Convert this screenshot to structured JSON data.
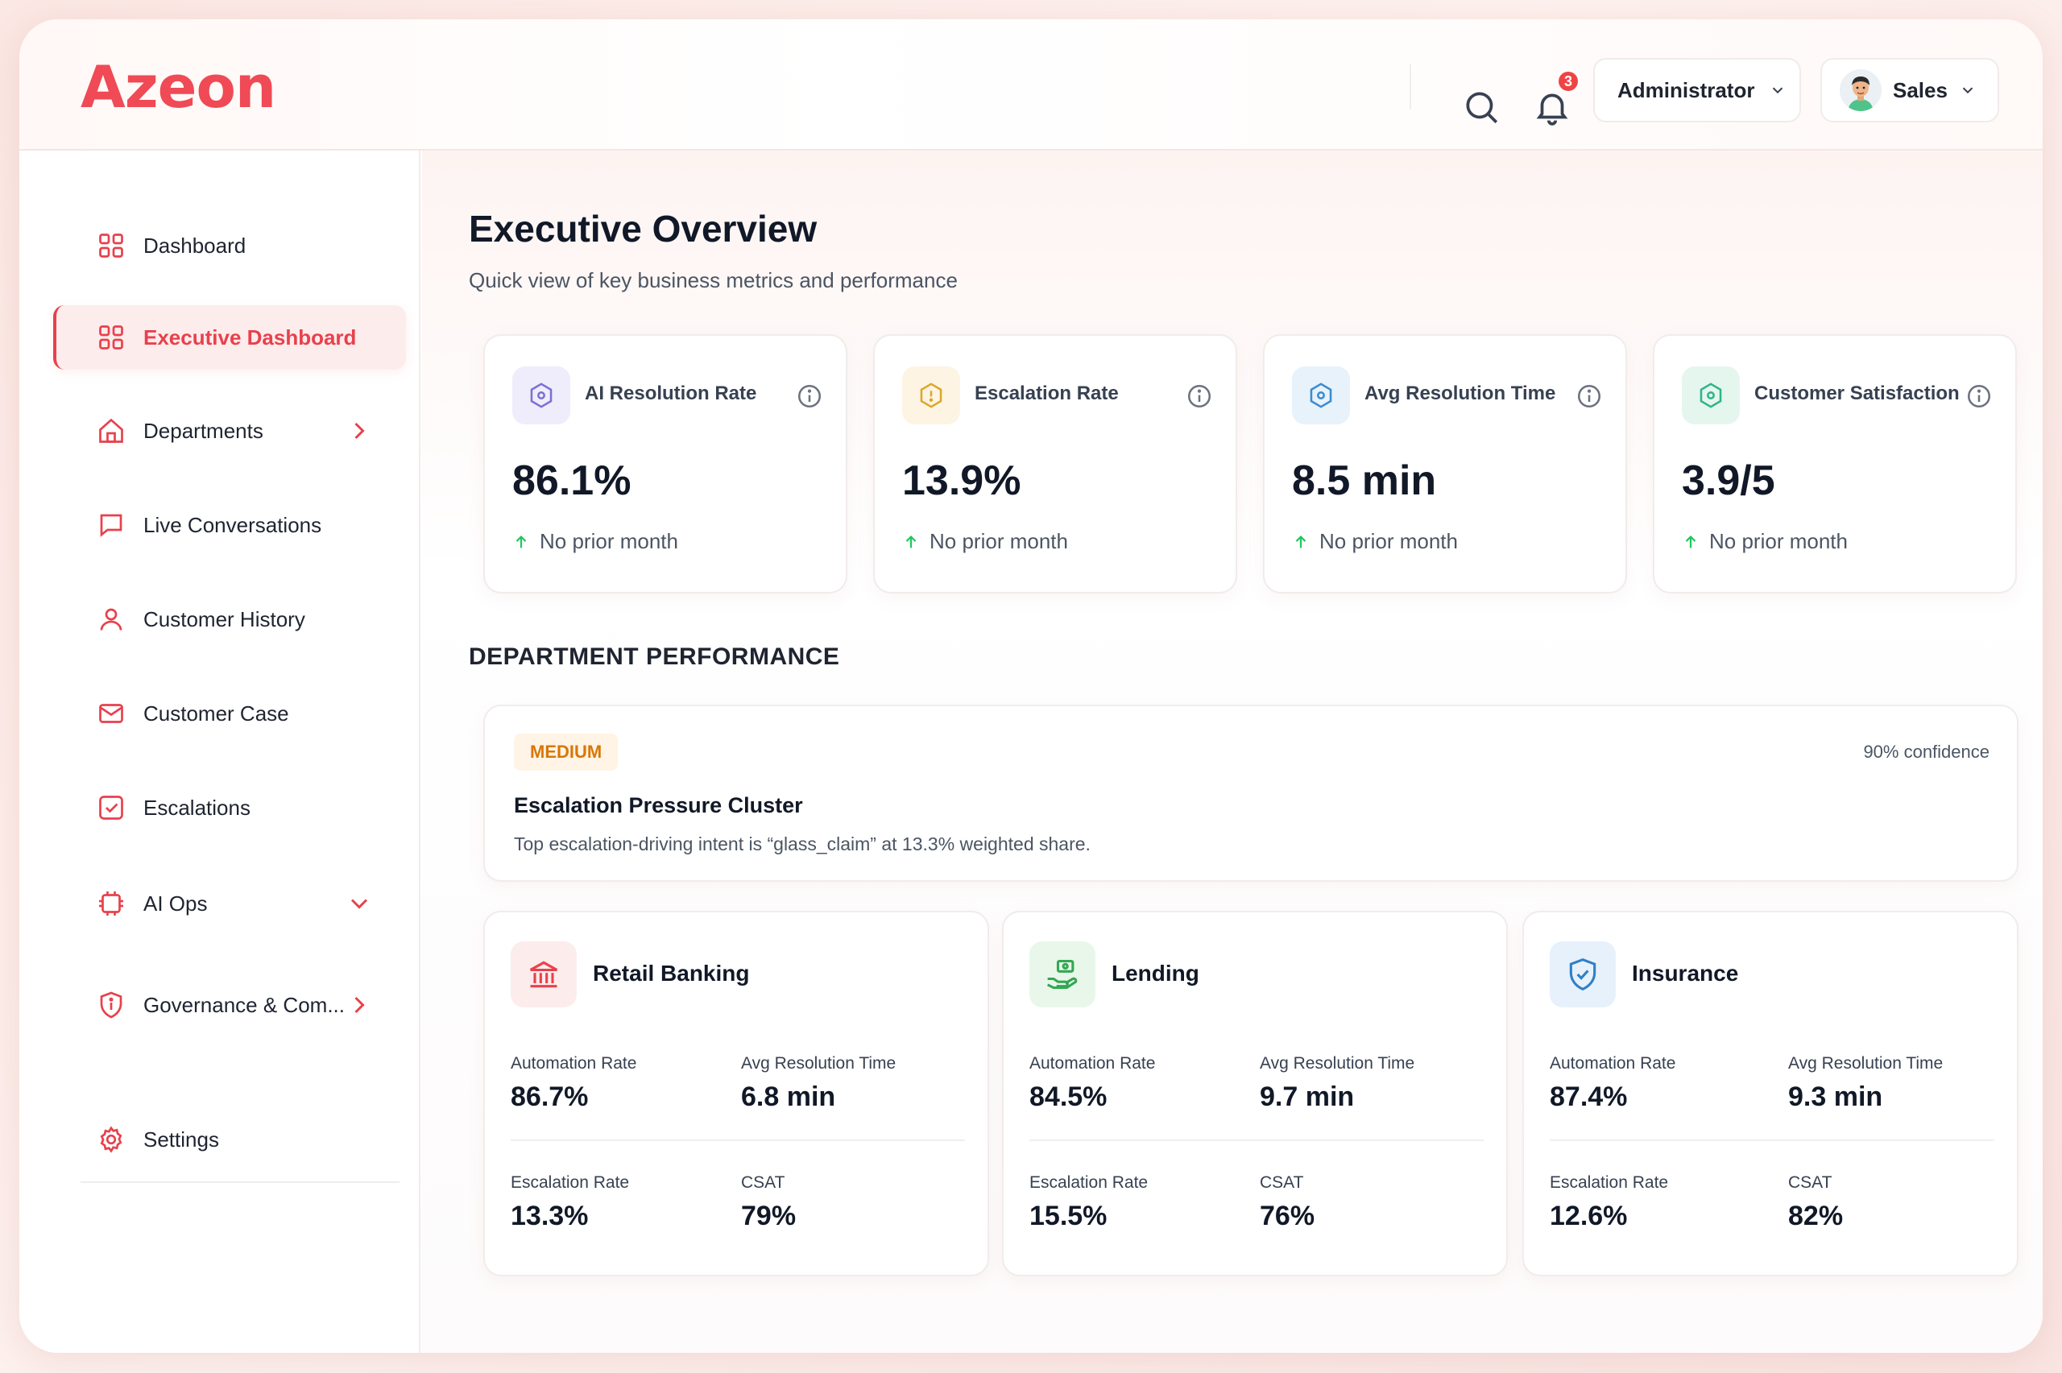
{
  "app": {
    "logo": "Azeon"
  },
  "header": {
    "notifications_count": "3",
    "role_label": "Administrator",
    "user_label": "Sales"
  },
  "sidebar": {
    "items": [
      {
        "label": "Dashboard",
        "icon": "grid-icon",
        "active": false
      },
      {
        "label": "Executive Dashboard",
        "icon": "grid-icon",
        "active": true
      },
      {
        "label": "Departments",
        "icon": "home-icon",
        "expandable": "chevron-right"
      },
      {
        "label": "Live Conversations",
        "icon": "chat-icon"
      },
      {
        "label": "Customer History",
        "icon": "user-icon"
      },
      {
        "label": "Customer Case",
        "icon": "envelope-icon"
      },
      {
        "label": "Escalations",
        "icon": "checkbox-icon"
      },
      {
        "label": "AI Ops",
        "icon": "ai-chip-icon",
        "expandable": "chevron-down"
      },
      {
        "label": "Governance & Com...",
        "icon": "shield-icon",
        "expandable": "chevron-right"
      },
      {
        "label": "Settings",
        "icon": "gear-icon"
      }
    ]
  },
  "page": {
    "title": "Executive Overview",
    "subtitle": "Quick view of key business metrics and performance"
  },
  "kpis": [
    {
      "label": "AI Resolution Rate",
      "value": "86.1%",
      "trend": "No prior month",
      "accent": "#7c6fd6",
      "bg": "#efedfb"
    },
    {
      "label": "Escalation Rate",
      "value": "13.9%",
      "trend": "No prior month",
      "accent": "#e0a62a",
      "bg": "#fdf4e3"
    },
    {
      "label": "Avg Resolution Time",
      "value": "8.5 min",
      "trend": "No prior month",
      "accent": "#3b8ccf",
      "bg": "#e7f2fb"
    },
    {
      "label": "Customer Satisfaction",
      "value": "3.9/5",
      "trend": "No prior month",
      "accent": "#2fb58a",
      "bg": "#e5f6ef"
    }
  ],
  "department_performance": {
    "title": "DEPARTMENT PERFORMANCE",
    "insight": {
      "severity": "MEDIUM",
      "confidence": "90% confidence",
      "title": "Escalation Pressure Cluster",
      "description": "Top escalation-driving intent is “glass_claim” at 13.3% weighted share."
    },
    "metric_labels": {
      "automation": "Automation Rate",
      "avg_time": "Avg Resolution Time",
      "escalation": "Escalation Rate",
      "csat": "CSAT"
    },
    "departments": [
      {
        "name": "Retail Banking",
        "icon": "bank-icon",
        "automation": "86.7%",
        "avg_time": "6.8 min",
        "escalation": "13.3%",
        "csat": "79%"
      },
      {
        "name": "Lending",
        "icon": "hand-money-icon",
        "automation": "84.5%",
        "avg_time": "9.7 min",
        "escalation": "15.5%",
        "csat": "76%"
      },
      {
        "name": "Insurance",
        "icon": "shield-check-icon",
        "automation": "87.4%",
        "avg_time": "9.3 min",
        "escalation": "12.6%",
        "csat": "82%"
      }
    ]
  },
  "colors": {
    "brand": "#ef4a55",
    "trend_up": "#22c55e",
    "medium_badge": "#d97706"
  }
}
